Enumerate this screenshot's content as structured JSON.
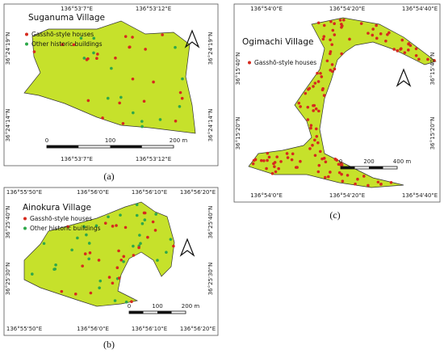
{
  "panels": [
    {
      "caption": "(a)",
      "title": "Suganuma Village",
      "legend": [
        "Gasshō-style houses",
        "Other historic buildings"
      ],
      "top_labels": [
        "136°53'7\"E",
        "136°53'12\"E"
      ],
      "bottom_labels": [
        "136°53'7\"E",
        "136°53'12\"E"
      ],
      "left_labels": [
        "36°24'19\"N",
        "36°24'14\"N"
      ],
      "right_labels": [
        "36°24'19\"N",
        "36°24'14\"N"
      ],
      "scale": [
        "0",
        "100",
        "200 m"
      ]
    },
    {
      "caption": "(b)",
      "title": "Ainokura Village",
      "legend": [
        "Gasshō-style houses",
        "Other historic buildings"
      ],
      "top_labels": [
        "136°55'50\"E",
        "136°56'0\"E",
        "136°56'10\"E",
        "136°56'20\"E"
      ],
      "bottom_labels": [
        "136°55'50\"E",
        "136°56'0\"E",
        "136°56'10\"E",
        "136°56'20\"E"
      ],
      "left_labels": [
        "36°25'40\"N",
        "36°25'30\"N"
      ],
      "right_labels": [
        "36°25'40\"N",
        "36°25'30\"N"
      ],
      "scale": [
        "0",
        "100",
        "200 m"
      ]
    },
    {
      "caption": "(c)",
      "title": "Ogimachi Village",
      "legend": [
        "Gasshō-style houses"
      ],
      "top_labels": [
        "136°54'0\"E",
        "136°54'20\"E",
        "136°54'40\"E"
      ],
      "bottom_labels": [
        "136°54'0\"E",
        "136°54'20\"E",
        "136°54'40\"E"
      ],
      "left_labels": [
        "36°15'40\"N",
        "36°15'20\"N"
      ],
      "right_labels": [
        "36°15'40\"N",
        "36°15'20\"N"
      ],
      "scale": [
        "0",
        "200",
        "400 m"
      ]
    }
  ]
}
